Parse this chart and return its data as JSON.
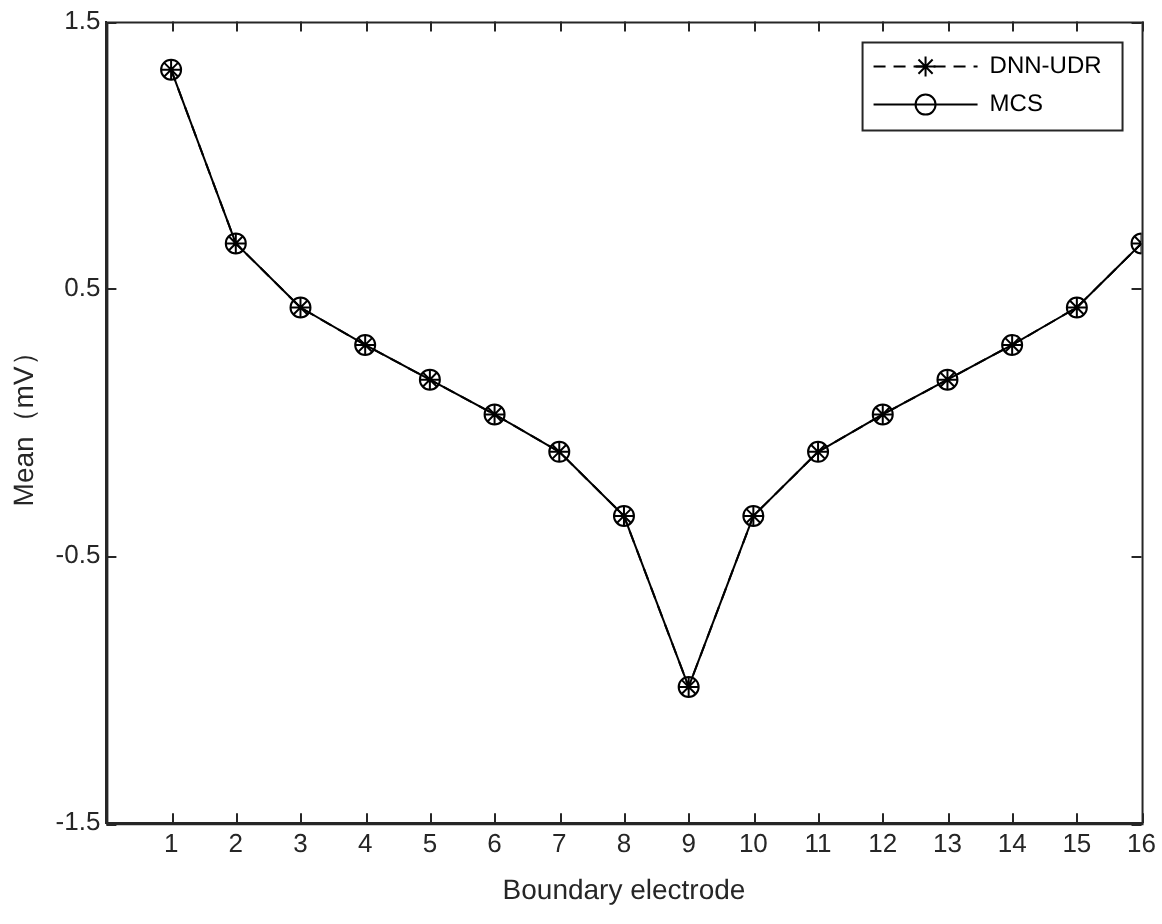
{
  "chart_data": {
    "type": "line",
    "xlabel": "Boundary electrode",
    "ylabel": "Mean（mV）",
    "x": [
      1,
      2,
      3,
      4,
      5,
      6,
      7,
      8,
      9,
      10,
      11,
      12,
      13,
      14,
      15,
      16
    ],
    "series": [
      {
        "name": "DNN-UDR",
        "color": "#000000",
        "marker": "cross",
        "line_style": "dashed",
        "values": [
          1.32,
          0.67,
          0.43,
          0.29,
          0.16,
          0.03,
          -0.11,
          -0.35,
          -0.99,
          -0.35,
          -0.11,
          0.03,
          0.16,
          0.29,
          0.43,
          0.67
        ]
      },
      {
        "name": "MCS",
        "color": "#000000",
        "marker": "circle",
        "line_style": "solid",
        "values": [
          1.32,
          0.67,
          0.43,
          0.29,
          0.16,
          0.03,
          -0.11,
          -0.35,
          -0.99,
          -0.35,
          -0.11,
          0.03,
          0.16,
          0.29,
          0.43,
          0.67
        ]
      }
    ],
    "xlim": [
      0,
      16
    ],
    "xticks": [
      1,
      2,
      3,
      4,
      5,
      6,
      7,
      8,
      9,
      10,
      11,
      12,
      13,
      14,
      15,
      16
    ],
    "ylim": [
      -1.5,
      1.5
    ],
    "yticks": [
      -1.5,
      -0.5,
      0.5,
      1.5
    ],
    "grid": false,
    "legend": "top right"
  }
}
